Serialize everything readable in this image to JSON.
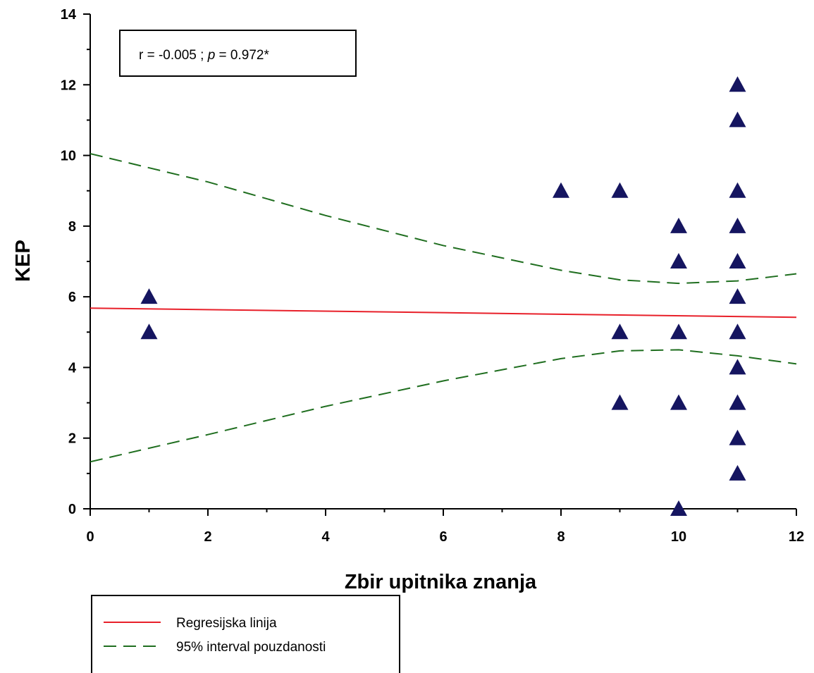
{
  "chart_data": {
    "type": "scatter",
    "xlabel": "Zbir upitnika znanja",
    "ylabel": "KEP",
    "xlim": [
      0,
      12
    ],
    "ylim": [
      0,
      14
    ],
    "xticks": [
      0,
      2,
      4,
      6,
      8,
      10,
      12
    ],
    "yticks": [
      0,
      2,
      4,
      6,
      8,
      10,
      12,
      14
    ],
    "grid": false,
    "annotation": {
      "prefix": "r = -0.005 ; ",
      "p_symbol": "p",
      "suffix": " = 0.972*"
    },
    "points": [
      {
        "x": 1,
        "y": 6
      },
      {
        "x": 1,
        "y": 5
      },
      {
        "x": 8,
        "y": 9
      },
      {
        "x": 9,
        "y": 9
      },
      {
        "x": 9,
        "y": 5
      },
      {
        "x": 9,
        "y": 3
      },
      {
        "x": 10,
        "y": 8
      },
      {
        "x": 10,
        "y": 7
      },
      {
        "x": 10,
        "y": 5
      },
      {
        "x": 10,
        "y": 3
      },
      {
        "x": 10,
        "y": 0
      },
      {
        "x": 11,
        "y": 12
      },
      {
        "x": 11,
        "y": 11
      },
      {
        "x": 11,
        "y": 9
      },
      {
        "x": 11,
        "y": 8
      },
      {
        "x": 11,
        "y": 7
      },
      {
        "x": 11,
        "y": 6
      },
      {
        "x": 11,
        "y": 5
      },
      {
        "x": 11,
        "y": 4
      },
      {
        "x": 11,
        "y": 3
      },
      {
        "x": 11,
        "y": 2
      },
      {
        "x": 11,
        "y": 1
      }
    ],
    "series": [
      {
        "name": "Regresijska linija",
        "style": "solid",
        "color": "#e8202a",
        "x": [
          0,
          12
        ],
        "y": [
          5.68,
          5.42
        ]
      },
      {
        "name": "95% interval pouzdanosti",
        "style": "dashed",
        "color": "#1f6e1f",
        "x": [
          0,
          2,
          4,
          6,
          8,
          9,
          10,
          11,
          12
        ],
        "y": [
          10.05,
          9.25,
          8.3,
          7.45,
          6.75,
          6.48,
          6.38,
          6.45,
          6.65
        ]
      },
      {
        "name": "",
        "style": "dashed",
        "color": "#1f6e1f",
        "x": [
          0,
          2,
          4,
          6,
          8,
          9,
          10,
          11,
          12
        ],
        "y": [
          1.33,
          2.1,
          2.9,
          3.62,
          4.25,
          4.47,
          4.5,
          4.33,
          4.1
        ]
      }
    ],
    "marker_color": "#151560",
    "marker_shape": "triangle",
    "legend_position": "bottom-left"
  }
}
